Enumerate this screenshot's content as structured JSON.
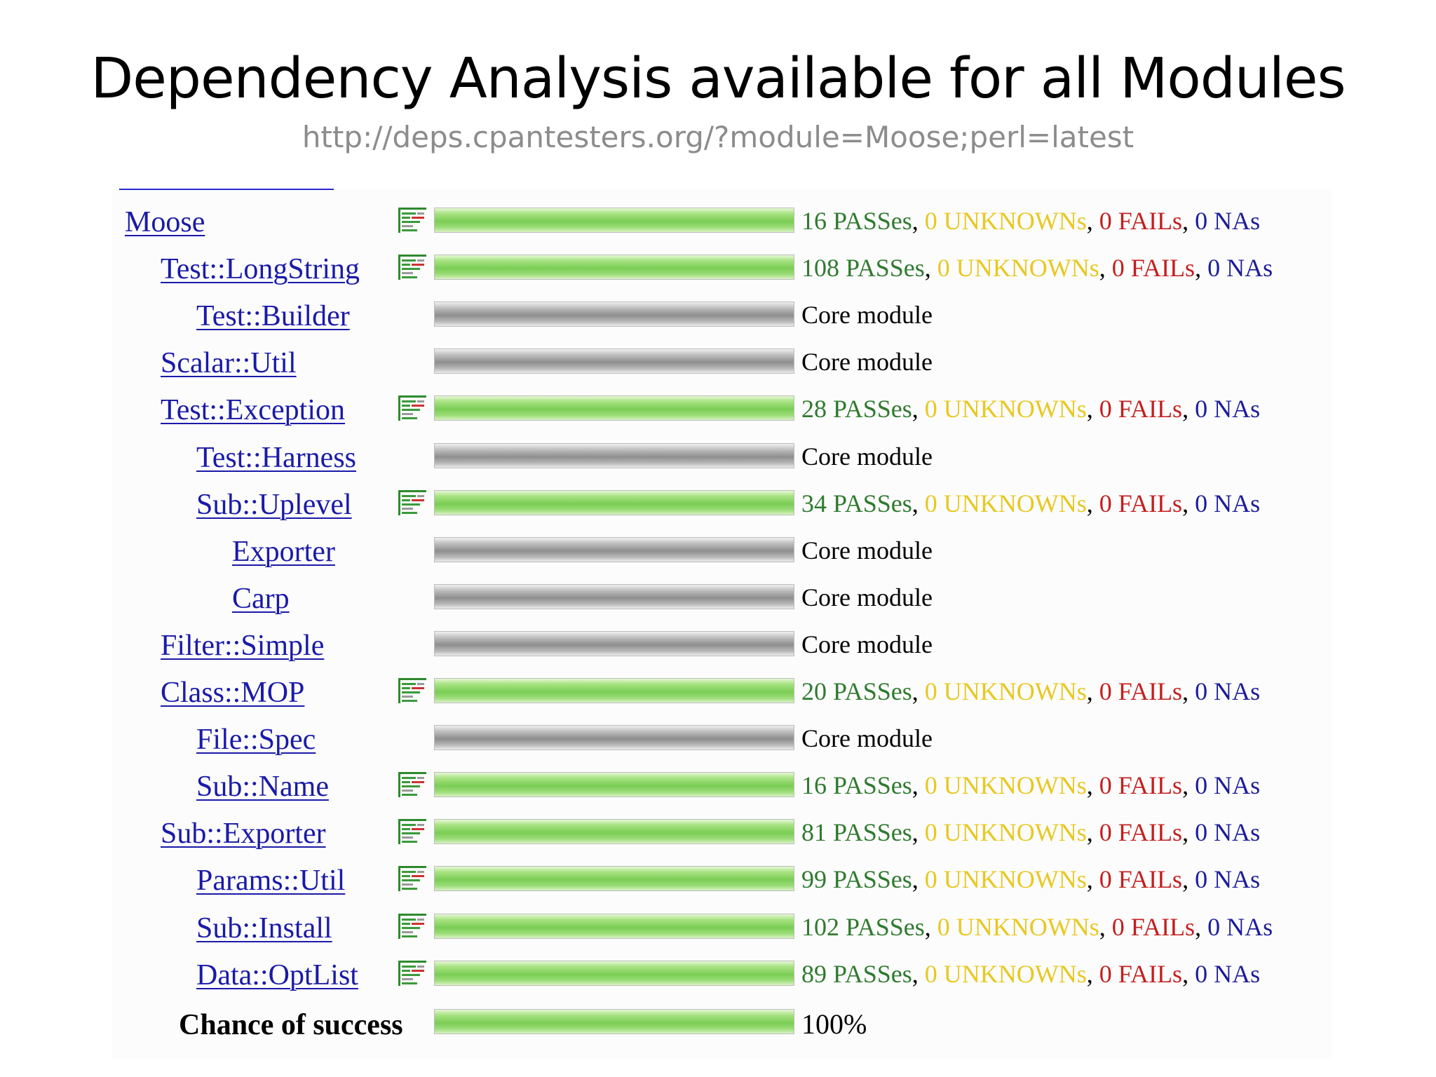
{
  "slide": {
    "title": "Dependency Analysis available for all Modules",
    "url": "http://deps.cpantesters.org/?module=Moose;perl=latest"
  },
  "labels": {
    "core": "Core module",
    "passes": "PASSes",
    "unknowns": "UNKNOWNs",
    "fails": "FAILs",
    "nas": "NAs",
    "sep": ","
  },
  "colors": {
    "pass": "#2f7a2f",
    "unknown": "#e8c820",
    "fail": "#c41e1e",
    "na": "#1c1c9a",
    "link": "#1a1aa8"
  },
  "modules": [
    {
      "name": "Moose",
      "depth": 0,
      "core": false,
      "pass": "16",
      "unknown": "0",
      "fail": "0",
      "na": "0",
      "success": 1.0
    },
    {
      "name": "Test::LongString",
      "depth": 1,
      "core": false,
      "pass": "108",
      "unknown": "0",
      "fail": "0",
      "na": "0",
      "success": 1.0
    },
    {
      "name": "Test::Builder",
      "depth": 2,
      "core": true,
      "success": 1.0
    },
    {
      "name": "Scalar::Util",
      "depth": 1,
      "core": true,
      "success": 1.0
    },
    {
      "name": "Test::Exception",
      "depth": 1,
      "core": false,
      "pass": "28",
      "unknown": "0",
      "fail": "0",
      "na": "0",
      "success": 1.0
    },
    {
      "name": "Test::Harness",
      "depth": 2,
      "core": true,
      "success": 1.0
    },
    {
      "name": "Sub::Uplevel",
      "depth": 2,
      "core": false,
      "pass": "34",
      "unknown": "0",
      "fail": "0",
      "na": "0",
      "success": 1.0
    },
    {
      "name": "Exporter",
      "depth": 3,
      "core": true,
      "success": 1.0
    },
    {
      "name": "Carp",
      "depth": 3,
      "core": true,
      "success": 1.0
    },
    {
      "name": "Filter::Simple",
      "depth": 1,
      "core": true,
      "success": 1.0
    },
    {
      "name": "Class::MOP",
      "depth": 1,
      "core": false,
      "pass": "20",
      "unknown": "0",
      "fail": "0",
      "na": "0",
      "success": 1.0
    },
    {
      "name": "File::Spec",
      "depth": 2,
      "core": true,
      "success": 1.0
    },
    {
      "name": "Sub::Name",
      "depth": 2,
      "core": false,
      "pass": "16",
      "unknown": "0",
      "fail": "0",
      "na": "0",
      "success": 1.0
    },
    {
      "name": "Sub::Exporter",
      "depth": 1,
      "core": false,
      "pass": "81",
      "unknown": "0",
      "fail": "0",
      "na": "0",
      "success": 1.0
    },
    {
      "name": "Params::Util",
      "depth": 2,
      "core": false,
      "pass": "99",
      "unknown": "0",
      "fail": "0",
      "na": "0",
      "success": 1.0
    },
    {
      "name": "Sub::Install",
      "depth": 2,
      "core": false,
      "pass": "102",
      "unknown": "0",
      "fail": "0",
      "na": "0",
      "success": 1.0
    },
    {
      "name": "Data::OptList",
      "depth": 2,
      "core": false,
      "pass": "89",
      "unknown": "0",
      "fail": "0",
      "na": "0",
      "success": 1.0
    }
  ],
  "summary": {
    "label": "Chance of success",
    "value": "100%",
    "fraction": 1.0
  }
}
